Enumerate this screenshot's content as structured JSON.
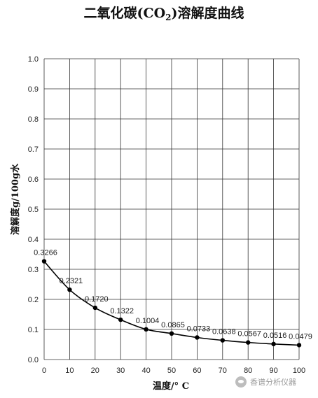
{
  "chart_data": {
    "type": "line",
    "title_prefix": "二氧化碳(CO",
    "title_sub": "2",
    "title_suffix": ")溶解度曲线",
    "xlabel": "温度/° C",
    "ylabel": "溶解度g/100g水",
    "x": [
      0,
      10,
      20,
      30,
      40,
      50,
      60,
      70,
      80,
      90,
      100
    ],
    "values": [
      0.3266,
      0.2321,
      0.172,
      0.1322,
      0.1004,
      0.0865,
      0.0733,
      0.0638,
      0.0567,
      0.0516,
      0.0479
    ],
    "data_labels": [
      "0.3266",
      "0.2321",
      "0.1720",
      "0.1322",
      "0.1004",
      "0.0865",
      "0.0733",
      "0.0638",
      "0.0567",
      "0.0516",
      "0.0479"
    ],
    "xticks": [
      "0",
      "10",
      "20",
      "30",
      "40",
      "50",
      "60",
      "70",
      "80",
      "90",
      "100"
    ],
    "yticks": [
      "0.0",
      "0.1",
      "0.2",
      "0.3",
      "0.4",
      "0.5",
      "0.6",
      "0.7",
      "0.8",
      "0.9",
      "1.0"
    ],
    "xlim": [
      0,
      100
    ],
    "ylim": [
      0,
      1.0
    ],
    "grid": true,
    "line_color": "#000000"
  },
  "watermark": {
    "text": "香谱分析仪器",
    "icon": "wechat-icon"
  }
}
